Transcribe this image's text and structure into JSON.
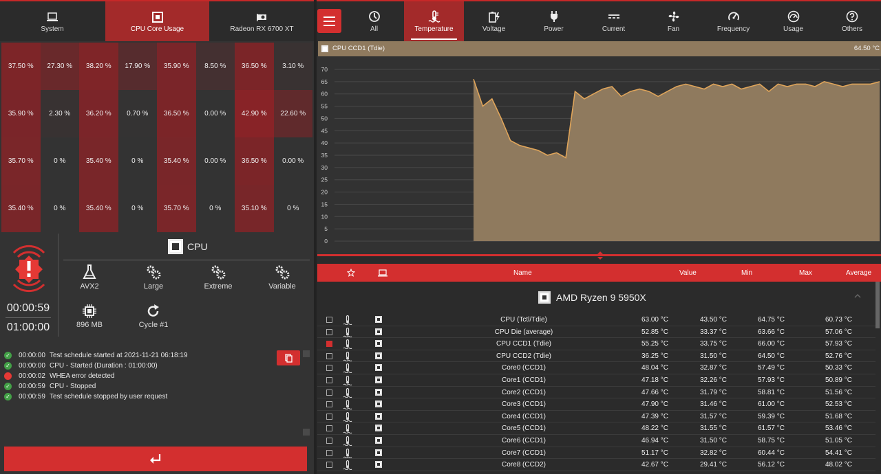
{
  "left_tabs": [
    {
      "label": "System"
    },
    {
      "label": "CPU Core Usage"
    },
    {
      "label": "Radeon RX 6700 XT"
    }
  ],
  "core_usage_grid": [
    [
      "37.50 %",
      "27.30 %",
      "38.20 %",
      "17.90 %",
      "35.90 %",
      "8.50 %",
      "36.50 %",
      "3.10 %"
    ],
    [
      "35.90 %",
      "2.30 %",
      "36.20 %",
      "0.70 %",
      "36.50 %",
      "0.00 %",
      "42.90 %",
      "22.60 %"
    ],
    [
      "35.70 %",
      "0 %",
      "35.40 %",
      "0 %",
      "35.40 %",
      "0.00 %",
      "36.50 %",
      "0.00 %"
    ],
    [
      "35.40 %",
      "0 %",
      "35.40 %",
      "0 %",
      "35.70 %",
      "0 %",
      "35.10 %",
      "0 %"
    ]
  ],
  "status": {
    "elapsed": "00:00:59",
    "duration": "01:00:00"
  },
  "test": {
    "title": "CPU",
    "options": [
      {
        "label": "AVX2",
        "icon": "flask-icon"
      },
      {
        "label": "Large",
        "icon": "gears-icon"
      },
      {
        "label": "Extreme",
        "icon": "gears-icon"
      },
      {
        "label": "Variable",
        "icon": "gears-icon"
      },
      {
        "label": "896 MB",
        "icon": "memory-chip-icon"
      },
      {
        "label": "Cycle #1",
        "icon": "refresh-icon"
      }
    ]
  },
  "log": [
    {
      "time": "00:00:00",
      "text": "Test schedule started at 2021-11-21 06:18:19",
      "status": "ok"
    },
    {
      "time": "00:00:00",
      "text": "CPU - Started (Duration : 01:00:00)",
      "status": "ok"
    },
    {
      "time": "00:00:02",
      "text": "WHEA error detected",
      "status": "error"
    },
    {
      "time": "00:00:59",
      "text": "CPU - Stopped",
      "status": "ok"
    },
    {
      "time": "00:00:59",
      "text": "Test schedule stopped by user request",
      "status": "ok"
    }
  ],
  "right_tabs": [
    {
      "label": "All",
      "icon": "gauge-history-icon"
    },
    {
      "label": "Temperature",
      "icon": "thermometer-icon"
    },
    {
      "label": "Voltage",
      "icon": "battery-bolt-icon"
    },
    {
      "label": "Power",
      "icon": "plug-icon"
    },
    {
      "label": "Current",
      "icon": "dc-current-icon"
    },
    {
      "label": "Fan",
      "icon": "fan-icon"
    },
    {
      "label": "Frequency",
      "icon": "speedometer-icon"
    },
    {
      "label": "Usage",
      "icon": "usage-gauge-icon"
    },
    {
      "label": "Others",
      "icon": "question-icon"
    }
  ],
  "chart_header": {
    "sensor": "CPU CCD1 (Tdie)",
    "value": "64.50 °C"
  },
  "chart_data": {
    "type": "area",
    "title": "",
    "xlabel": "",
    "ylabel": "",
    "ylim": [
      0,
      70
    ],
    "yticks": [
      0,
      5,
      10,
      15,
      20,
      25,
      30,
      35,
      40,
      45,
      50,
      55,
      60,
      65,
      70
    ],
    "grid": true,
    "series": [
      {
        "values": [
          66,
          55,
          58,
          50,
          41,
          39,
          38,
          37,
          35,
          36,
          34,
          61,
          58,
          60,
          62,
          63,
          59,
          61,
          62,
          61,
          59,
          61,
          63,
          64,
          63,
          62,
          64,
          63,
          64,
          62,
          63,
          64,
          61,
          64,
          63,
          64,
          64,
          63,
          65,
          64,
          63,
          64,
          64,
          64,
          65
        ]
      }
    ],
    "colors": {
      "area": "#8f7a5e",
      "line": "#e0a55a"
    }
  },
  "table": {
    "headers": {
      "name": "Name",
      "value": "Value",
      "min": "Min",
      "max": "Max",
      "average": "Average"
    },
    "group": "AMD Ryzen 9 5950X",
    "rows": [
      {
        "name": "CPU (Tctl/Tdie)",
        "value": "63.00 °C",
        "min": "43.50 °C",
        "max": "64.75 °C",
        "avg": "60.73 °C",
        "checked": false
      },
      {
        "name": "CPU Die (average)",
        "value": "52.85 °C",
        "min": "33.37 °C",
        "max": "63.66 °C",
        "avg": "57.06 °C",
        "checked": false
      },
      {
        "name": "CPU CCD1 (Tdie)",
        "value": "55.25 °C",
        "min": "33.75 °C",
        "max": "66.00 °C",
        "avg": "57.93 °C",
        "checked": true
      },
      {
        "name": "CPU CCD2 (Tdie)",
        "value": "36.25 °C",
        "min": "31.50 °C",
        "max": "64.50 °C",
        "avg": "52.76 °C",
        "checked": false
      },
      {
        "name": "Core0 (CCD1)",
        "value": "48.04 °C",
        "min": "32.87 °C",
        "max": "57.49 °C",
        "avg": "50.33 °C",
        "checked": false
      },
      {
        "name": "Core1 (CCD1)",
        "value": "47.18 °C",
        "min": "32.26 °C",
        "max": "57.93 °C",
        "avg": "50.89 °C",
        "checked": false
      },
      {
        "name": "Core2 (CCD1)",
        "value": "47.66 °C",
        "min": "31.79 °C",
        "max": "58.81 °C",
        "avg": "51.56 °C",
        "checked": false
      },
      {
        "name": "Core3 (CCD1)",
        "value": "47.90 °C",
        "min": "31.46 °C",
        "max": "61.00 °C",
        "avg": "52.53 °C",
        "checked": false
      },
      {
        "name": "Core4 (CCD1)",
        "value": "47.39 °C",
        "min": "31.57 °C",
        "max": "59.39 °C",
        "avg": "51.68 °C",
        "checked": false
      },
      {
        "name": "Core5 (CCD1)",
        "value": "48.22 °C",
        "min": "31.55 °C",
        "max": "61.57 °C",
        "avg": "53.46 °C",
        "checked": false
      },
      {
        "name": "Core6 (CCD1)",
        "value": "46.94 °C",
        "min": "31.50 °C",
        "max": "58.75 °C",
        "avg": "51.05 °C",
        "checked": false
      },
      {
        "name": "Core7 (CCD1)",
        "value": "51.17 °C",
        "min": "32.82 °C",
        "max": "60.44 °C",
        "avg": "54.41 °C",
        "checked": false
      },
      {
        "name": "Core8 (CCD2)",
        "value": "42.67 °C",
        "min": "29.41 °C",
        "max": "56.12 °C",
        "avg": "48.02 °C",
        "checked": false
      }
    ]
  }
}
